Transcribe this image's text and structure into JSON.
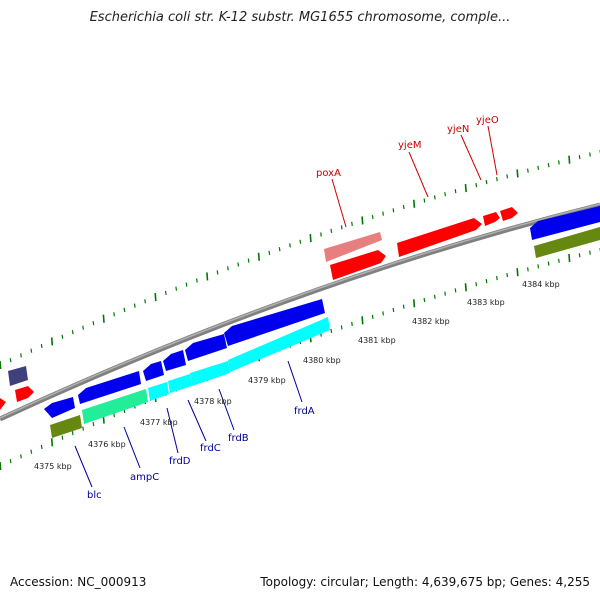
{
  "title": "Escherichia coli str. K-12 substr. MG1655 chromosome, comple...",
  "footer": {
    "accession": "Accession: NC_000913",
    "topology": "Topology: circular; Length: 4,639,675 bp; Genes: 4,255"
  },
  "colors": {
    "forward_gene": "#ff0000",
    "forward_gene_light": "#e77f7f",
    "reverse_gene": "#0000ee",
    "reverse_gene_dark": "#40407f",
    "cyan_gene": "#00ffff",
    "green_gene": "#22ee99",
    "olive_gene": "#668811",
    "backbone": "#808080",
    "tick": "#007700",
    "label_forward": "#cc0000",
    "label_reverse": "#000099"
  },
  "kbp_labels": [
    "4375 kbp",
    "4376 kbp",
    "4377 kbp",
    "4378 kbp",
    "4379 kbp",
    "4380 kbp",
    "4381 kbp",
    "4382 kbp",
    "4383 kbp",
    "4384 kbp"
  ],
  "forward_genes": [
    {
      "name": "poxA",
      "label": "poxA"
    },
    {
      "name": "yjeM",
      "label": "yjeM"
    },
    {
      "name": "yjeN",
      "label": "yjeN"
    },
    {
      "name": "yjeO",
      "label": "yjeO"
    }
  ],
  "reverse_genes": [
    {
      "name": "blc",
      "label": "blc"
    },
    {
      "name": "ampC",
      "label": "ampC"
    },
    {
      "name": "frdD",
      "label": "frdD"
    },
    {
      "name": "frdC",
      "label": "frdC"
    },
    {
      "name": "frdB",
      "label": "frdB"
    },
    {
      "name": "frdA",
      "label": "frdA"
    }
  ]
}
